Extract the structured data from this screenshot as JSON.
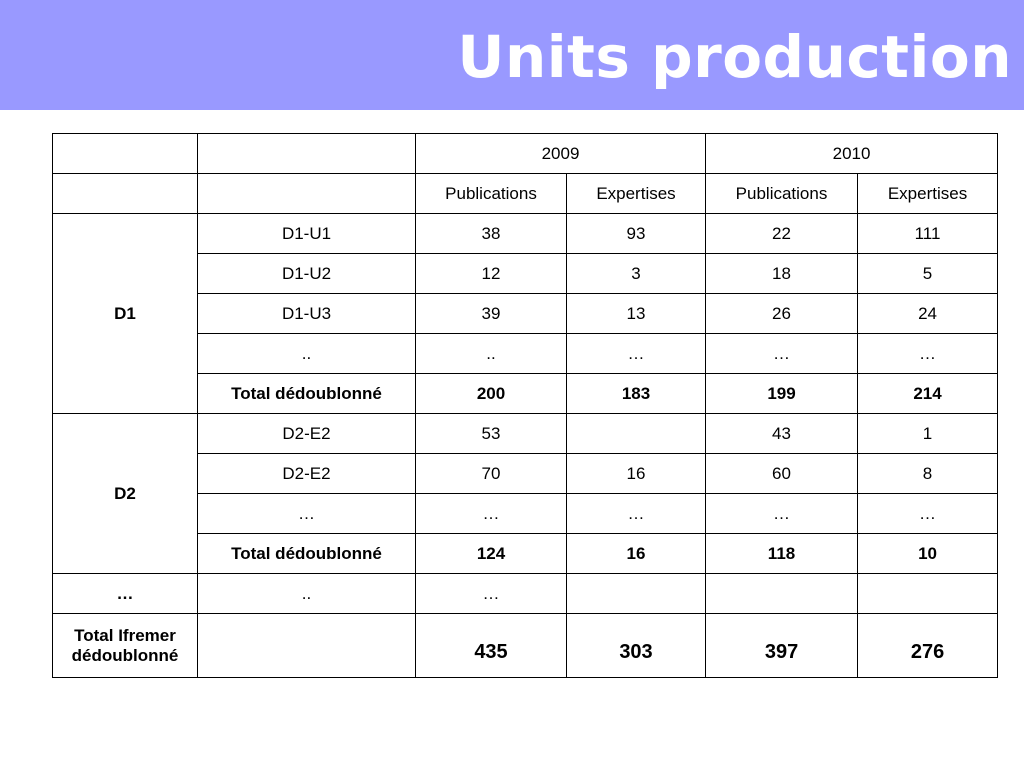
{
  "title": "Units production",
  "years": [
    "2009",
    "2010"
  ],
  "col_headers": [
    "Publications",
    "Expertises",
    "Publications",
    "Expertises"
  ],
  "groups": [
    {
      "domain": "D1",
      "rows": [
        {
          "unit": "D1-U1",
          "values": [
            "38",
            "93",
            "22",
            "111"
          ]
        },
        {
          "unit": "D1-U2",
          "values": [
            "12",
            "3",
            "18",
            "5"
          ]
        },
        {
          "unit": "D1-U3",
          "values": [
            "39",
            "13",
            "26",
            "24"
          ]
        },
        {
          "unit": "..",
          "values": [
            "..",
            "…",
            "…",
            "…"
          ]
        }
      ],
      "total": {
        "label": "Total dédoublonné",
        "values": [
          "200",
          "183",
          "199",
          "214"
        ]
      }
    },
    {
      "domain": "D2",
      "rows": [
        {
          "unit": "D2-E2",
          "values": [
            "53",
            "",
            "43",
            "1"
          ]
        },
        {
          "unit": "D2-E2",
          "values": [
            "70",
            "16",
            "60",
            "8"
          ]
        },
        {
          "unit": "…",
          "values": [
            "…",
            "…",
            "…",
            "…"
          ]
        }
      ],
      "total": {
        "label": "Total dédoublonné",
        "values": [
          "124",
          "16",
          "118",
          "10"
        ]
      }
    }
  ],
  "ellipsis_row": {
    "domain": "…",
    "unit": "..",
    "values": [
      "…",
      "",
      "",
      ""
    ]
  },
  "grand_total": {
    "label": "Total Ifremer dédoublonné",
    "unit": "",
    "values": [
      "435",
      "303",
      "397",
      "276"
    ]
  }
}
